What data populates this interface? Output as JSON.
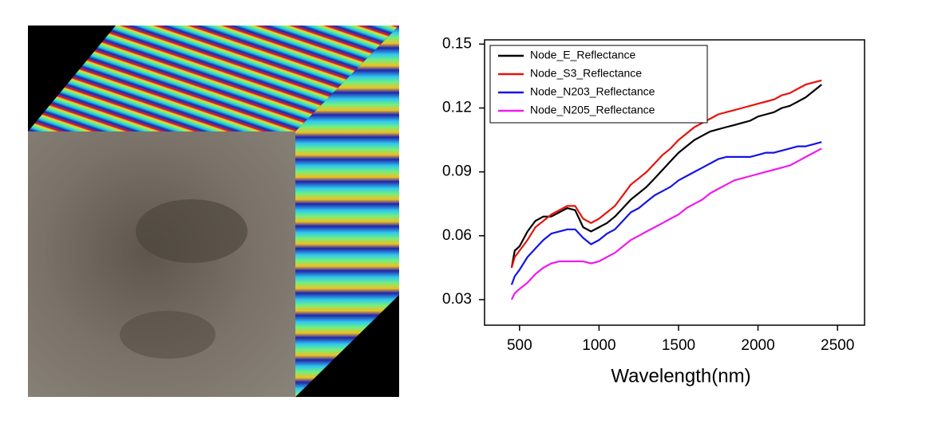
{
  "chart_data": {
    "type": "line",
    "x_label": "Wavelength(nm)",
    "x": [
      450,
      470,
      500,
      550,
      600,
      650,
      700,
      750,
      800,
      850,
      900,
      950,
      1000,
      1050,
      1100,
      1150,
      1200,
      1250,
      1300,
      1350,
      1400,
      1450,
      1500,
      1550,
      1600,
      1650,
      1700,
      1750,
      1800,
      1850,
      1900,
      1950,
      2000,
      2050,
      2100,
      2150,
      2200,
      2250,
      2300,
      2350,
      2400
    ],
    "series": [
      {
        "name": "Node_E_Reflectance",
        "color": "#000000",
        "values": [
          0.045,
          0.053,
          0.055,
          0.062,
          0.067,
          0.069,
          0.069,
          0.071,
          0.073,
          0.072,
          0.064,
          0.062,
          0.064,
          0.066,
          0.069,
          0.073,
          0.077,
          0.08,
          0.083,
          0.087,
          0.091,
          0.095,
          0.099,
          0.102,
          0.105,
          0.107,
          0.109,
          0.11,
          0.111,
          0.112,
          0.113,
          0.114,
          0.116,
          0.117,
          0.118,
          0.12,
          0.121,
          0.123,
          0.125,
          0.128,
          0.131
        ]
      },
      {
        "name": "Node_S3_Reflectance",
        "color": "#e8120c",
        "values": [
          0.045,
          0.05,
          0.053,
          0.058,
          0.064,
          0.067,
          0.07,
          0.072,
          0.074,
          0.074,
          0.068,
          0.066,
          0.068,
          0.071,
          0.074,
          0.079,
          0.084,
          0.087,
          0.09,
          0.094,
          0.098,
          0.101,
          0.105,
          0.108,
          0.111,
          0.113,
          0.115,
          0.117,
          0.118,
          0.119,
          0.12,
          0.121,
          0.122,
          0.123,
          0.124,
          0.126,
          0.127,
          0.129,
          0.131,
          0.132,
          0.133
        ]
      },
      {
        "name": "Node_N203_Reflectance",
        "color": "#1414e6",
        "values": [
          0.037,
          0.041,
          0.044,
          0.05,
          0.054,
          0.058,
          0.061,
          0.062,
          0.063,
          0.063,
          0.059,
          0.056,
          0.058,
          0.061,
          0.063,
          0.067,
          0.071,
          0.073,
          0.076,
          0.079,
          0.081,
          0.083,
          0.086,
          0.088,
          0.09,
          0.092,
          0.094,
          0.096,
          0.097,
          0.097,
          0.097,
          0.097,
          0.098,
          0.099,
          0.099,
          0.1,
          0.101,
          0.102,
          0.102,
          0.103,
          0.104
        ]
      },
      {
        "name": "Node_N205_Reflectance",
        "color": "#ee1bee",
        "values": [
          0.03,
          0.033,
          0.035,
          0.038,
          0.042,
          0.045,
          0.047,
          0.048,
          0.048,
          0.048,
          0.048,
          0.047,
          0.048,
          0.05,
          0.052,
          0.055,
          0.058,
          0.06,
          0.062,
          0.064,
          0.066,
          0.068,
          0.07,
          0.073,
          0.075,
          0.077,
          0.08,
          0.082,
          0.084,
          0.086,
          0.087,
          0.088,
          0.089,
          0.09,
          0.091,
          0.092,
          0.093,
          0.095,
          0.097,
          0.099,
          0.101
        ]
      }
    ],
    "xlim": [
      280,
      2670
    ],
    "ylim": [
      0.018,
      0.152
    ],
    "xticks": [
      500,
      1000,
      1500,
      2000,
      2500
    ],
    "yticks": [
      0.03,
      0.06,
      0.09,
      0.12,
      0.15
    ],
    "legend": "upper left"
  }
}
